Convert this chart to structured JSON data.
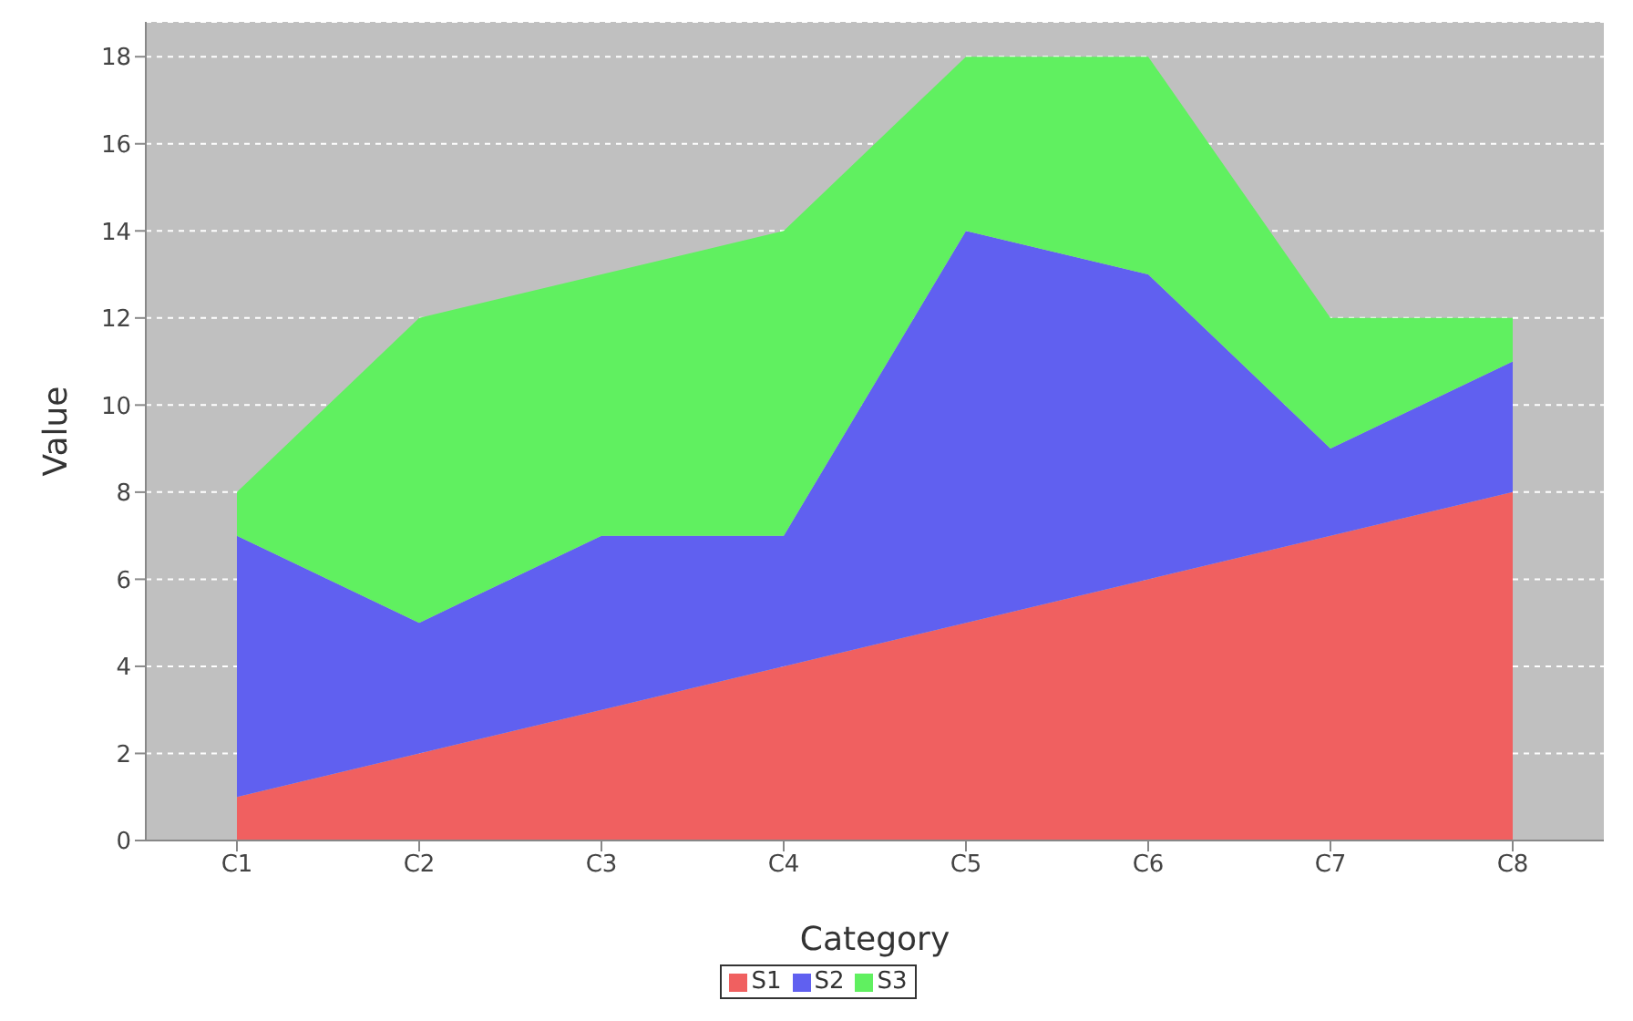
{
  "chart_data": {
    "type": "area",
    "stacked": true,
    "xlabel": "Category",
    "ylabel": "Value",
    "categories": [
      "C1",
      "C2",
      "C3",
      "C4",
      "C5",
      "C6",
      "C7",
      "C8"
    ],
    "series": [
      {
        "name": "S1",
        "color": "#f06060",
        "values": [
          1,
          2,
          3,
          4,
          5,
          6,
          7,
          8
        ]
      },
      {
        "name": "S2",
        "color": "#6060f0",
        "values": [
          6,
          3,
          4,
          3,
          9,
          7,
          2,
          3
        ]
      },
      {
        "name": "S3",
        "color": "#60f060",
        "values": [
          1,
          7,
          6,
          7,
          4,
          5,
          3,
          1
        ]
      }
    ],
    "ylim": [
      0,
      18.8
    ],
    "yticks": [
      0,
      2,
      4,
      6,
      8,
      10,
      12,
      14,
      16,
      18
    ],
    "grid": "y",
    "legend": "bottom"
  }
}
